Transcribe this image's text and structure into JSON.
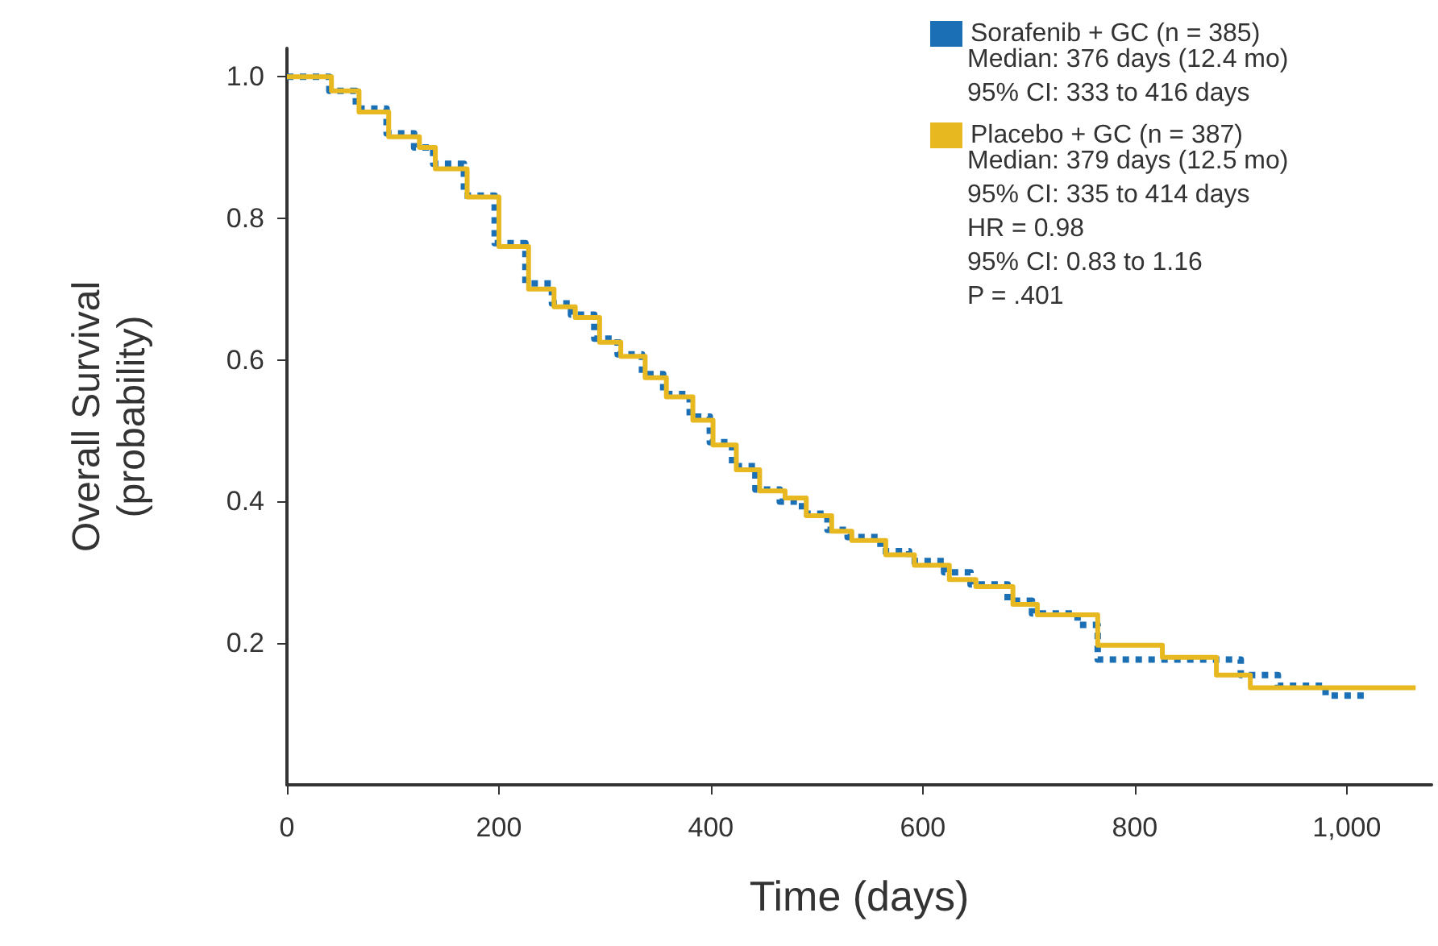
{
  "chart_data": {
    "type": "step",
    "xlabel": "Time (days)",
    "ylabel": "Overall Survival\n(probability)",
    "xlim": [
      0,
      1080
    ],
    "xticks": [
      0,
      200,
      400,
      600,
      800,
      {
        "value": 1000,
        "label": "1,000"
      }
    ],
    "ylim": [
      0,
      1.04
    ],
    "yticks": [
      0.2,
      0.4,
      0.6,
      0.8,
      {
        "value": 1,
        "label": "1.0"
      }
    ],
    "grid": false,
    "legend": "top right",
    "marker": "none",
    "series": [
      {
        "name": "Sorafenib + GC (n = 385)",
        "color": "#1a6fb5",
        "line_style": "dotted",
        "x": [
          0,
          40,
          65,
          94,
          120,
          138,
          167,
          196,
          225,
          250,
          268,
          290,
          312,
          335,
          355,
          380,
          399,
          420,
          442,
          465,
          486,
          510,
          529,
          560,
          587,
          620,
          645,
          680,
          703,
          746,
          765,
          800,
          830,
          862,
          900,
          935,
          980,
          1022
        ],
        "values": [
          1,
          0.98,
          0.955,
          0.92,
          0.9,
          0.877,
          0.832,
          0.765,
          0.708,
          0.68,
          0.664,
          0.63,
          0.608,
          0.58,
          0.552,
          0.52,
          0.484,
          0.45,
          0.417,
          0.4,
          0.383,
          0.36,
          0.35,
          0.33,
          0.316,
          0.3,
          0.283,
          0.26,
          0.242,
          0.226,
          0.177,
          0.177,
          0.177,
          0.177,
          0.155,
          0.14,
          0.126,
          0.126
        ]
      },
      {
        "name": "Placebo + GC (n = 387)",
        "color": "#e8b820",
        "line_style": "solid",
        "x": [
          0,
          42,
          68,
          96,
          125,
          140,
          170,
          200,
          228,
          252,
          272,
          295,
          315,
          338,
          358,
          383,
          402,
          424,
          446,
          470,
          490,
          514,
          533,
          565,
          592,
          625,
          650,
          685,
          708,
          765,
          826,
          877,
          909,
          1065
        ],
        "values": [
          1,
          0.98,
          0.95,
          0.915,
          0.9,
          0.87,
          0.83,
          0.76,
          0.7,
          0.675,
          0.66,
          0.625,
          0.605,
          0.575,
          0.548,
          0.515,
          0.48,
          0.445,
          0.415,
          0.405,
          0.38,
          0.358,
          0.345,
          0.325,
          0.31,
          0.29,
          0.28,
          0.255,
          0.24,
          0.197,
          0.18,
          0.155,
          0.137,
          0.137
        ]
      }
    ],
    "annotations": [
      "Median: 376 days (12.4 mo)",
      "95% CI: 333 to 416 days",
      "Median: 379 days (12.5 mo)",
      "95% CI: 335 to 414 days",
      "HR = 0.98",
      "95% CI: 0.83 to 1.16",
      "P = .401"
    ]
  }
}
